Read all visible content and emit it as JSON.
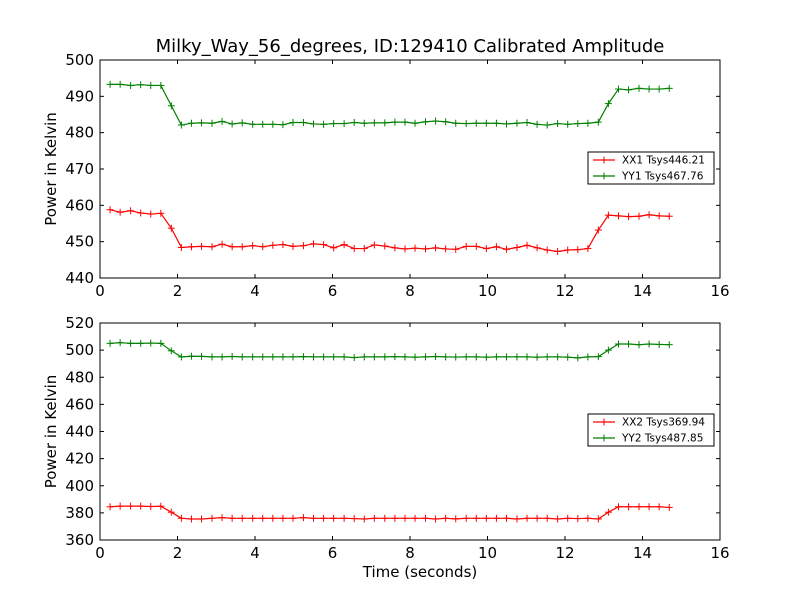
{
  "title": "Milky_Way_56_degrees, ID:129410 Calibrated Amplitude",
  "chart_data": [
    {
      "type": "line",
      "ylabel": "Power in Kelvin",
      "xlabel": "",
      "xlim": [
        0,
        16
      ],
      "ylim": [
        440,
        500
      ],
      "xticks": [
        0,
        2,
        4,
        6,
        8,
        10,
        12,
        14,
        16
      ],
      "yticks": [
        440,
        450,
        460,
        470,
        480,
        490,
        500
      ],
      "legend_position": "center-right",
      "grid": false,
      "x": [
        0.26,
        0.52,
        0.79,
        1.05,
        1.31,
        1.57,
        1.84,
        2.1,
        2.36,
        2.62,
        2.89,
        3.15,
        3.41,
        3.67,
        3.94,
        4.2,
        4.46,
        4.72,
        4.98,
        5.25,
        5.51,
        5.77,
        6.03,
        6.3,
        6.56,
        6.82,
        7.08,
        7.35,
        7.61,
        7.87,
        8.13,
        8.4,
        8.66,
        8.92,
        9.18,
        9.45,
        9.71,
        9.97,
        10.23,
        10.49,
        10.76,
        11.02,
        11.28,
        11.54,
        11.81,
        12.07,
        12.33,
        12.59,
        12.86,
        13.12,
        13.38,
        13.64,
        13.91,
        14.17,
        14.43,
        14.69
      ],
      "series": [
        {
          "name": "XX1 Tsys446.21",
          "color": "#ff0000",
          "values": [
            458.8,
            458.1,
            458.5,
            457.9,
            457.6,
            457.8,
            453.7,
            448.4,
            448.6,
            448.7,
            448.6,
            449.3,
            448.6,
            448.6,
            448.9,
            448.6,
            449.0,
            449.2,
            448.7,
            448.9,
            449.4,
            449.2,
            448.3,
            449.2,
            448.1,
            448.1,
            449.1,
            448.8,
            448.3,
            448.0,
            448.2,
            448.0,
            448.3,
            448.0,
            447.9,
            448.7,
            448.7,
            448.1,
            448.6,
            447.9,
            448.4,
            449.0,
            448.3,
            447.7,
            447.3,
            447.7,
            447.8,
            448.1,
            453.2,
            457.3,
            457.1,
            456.9,
            457.0,
            457.4,
            457.1,
            457.0
          ]
        },
        {
          "name": "YY1 Tsys467.76",
          "color": "#008000",
          "values": [
            493.3,
            493.3,
            493.0,
            493.2,
            493.0,
            493.0,
            487.4,
            482.1,
            482.6,
            482.7,
            482.6,
            483.1,
            482.4,
            482.7,
            482.3,
            482.3,
            482.3,
            482.2,
            482.8,
            482.8,
            482.4,
            482.3,
            482.5,
            482.5,
            482.8,
            482.6,
            482.7,
            482.7,
            482.9,
            482.9,
            482.6,
            483.0,
            483.2,
            483.0,
            482.6,
            482.5,
            482.6,
            482.6,
            482.6,
            482.4,
            482.6,
            482.8,
            482.3,
            482.1,
            482.5,
            482.3,
            482.5,
            482.6,
            482.9,
            488.0,
            492.0,
            491.8,
            492.2,
            492.0,
            492.0,
            492.2
          ]
        }
      ]
    },
    {
      "type": "line",
      "ylabel": "Power in Kelvin",
      "xlabel": "Time (seconds)",
      "xlim": [
        0,
        16
      ],
      "ylim": [
        360,
        520
      ],
      "xticks": [
        0,
        2,
        4,
        6,
        8,
        10,
        12,
        14,
        16
      ],
      "yticks": [
        360,
        380,
        400,
        420,
        440,
        460,
        480,
        500,
        520
      ],
      "legend_position": "center-right",
      "grid": false,
      "x": [
        0.26,
        0.52,
        0.79,
        1.05,
        1.31,
        1.57,
        1.84,
        2.1,
        2.36,
        2.62,
        2.89,
        3.15,
        3.41,
        3.67,
        3.94,
        4.2,
        4.46,
        4.72,
        4.98,
        5.25,
        5.51,
        5.77,
        6.03,
        6.3,
        6.56,
        6.82,
        7.08,
        7.35,
        7.61,
        7.87,
        8.13,
        8.4,
        8.66,
        8.92,
        9.18,
        9.45,
        9.71,
        9.97,
        10.23,
        10.49,
        10.76,
        11.02,
        11.28,
        11.54,
        11.81,
        12.07,
        12.33,
        12.59,
        12.86,
        13.12,
        13.38,
        13.64,
        13.91,
        14.17,
        14.43,
        14.69
      ],
      "series": [
        {
          "name": "XX2 Tsys369.94",
          "color": "#ff0000",
          "values": [
            384.5,
            385.0,
            385.0,
            385.0,
            384.7,
            384.9,
            380.5,
            376.0,
            375.5,
            375.5,
            376.0,
            376.5,
            376.0,
            376.0,
            376.0,
            376.0,
            376.0,
            376.0,
            376.0,
            376.5,
            376.0,
            376.0,
            376.0,
            376.0,
            375.8,
            375.5,
            376.0,
            376.0,
            376.0,
            376.0,
            376.0,
            376.0,
            375.5,
            376.0,
            375.6,
            376.0,
            376.0,
            376.0,
            376.0,
            376.0,
            375.5,
            376.0,
            376.0,
            376.0,
            375.5,
            376.0,
            375.8,
            376.0,
            375.5,
            380.5,
            384.5,
            384.5,
            384.5,
            384.5,
            384.5,
            384.0
          ]
        },
        {
          "name": "YY2 Tsys487.85",
          "color": "#008000",
          "values": [
            505.0,
            505.5,
            505.0,
            505.0,
            505.2,
            505.0,
            499.5,
            495.0,
            495.5,
            495.4,
            495.0,
            495.0,
            495.3,
            495.0,
            495.0,
            495.0,
            495.0,
            495.0,
            495.0,
            495.2,
            495.0,
            495.0,
            495.0,
            495.0,
            494.5,
            495.0,
            495.0,
            495.0,
            495.2,
            495.0,
            494.8,
            495.0,
            495.3,
            495.0,
            494.9,
            495.0,
            495.0,
            494.8,
            495.0,
            495.0,
            495.0,
            495.0,
            494.8,
            495.0,
            495.0,
            494.8,
            494.3,
            495.0,
            495.2,
            500.0,
            504.5,
            504.5,
            504.0,
            504.5,
            504.2,
            504.0
          ]
        }
      ]
    }
  ]
}
